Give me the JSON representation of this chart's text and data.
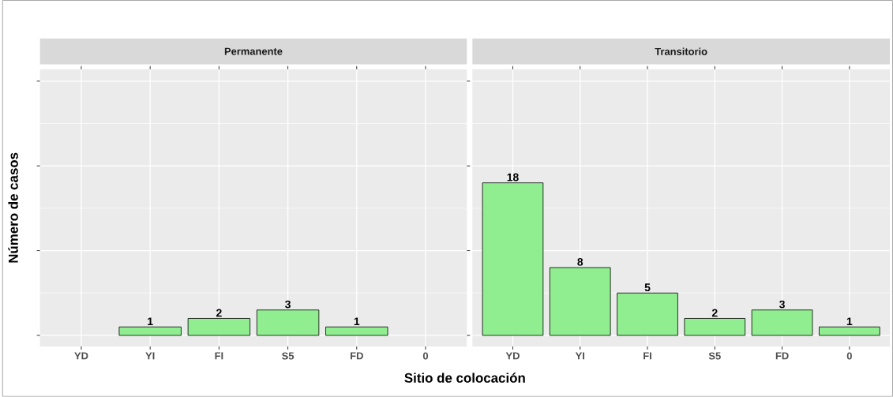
{
  "chart_data": [
    {
      "type": "bar",
      "title": "Permanente",
      "xlabel": "Sitio de colocación",
      "ylabel": "Número de casos",
      "categories": [
        "YD",
        "YI",
        "FI",
        "S5",
        "FD",
        "0"
      ],
      "values": [
        null,
        1,
        2,
        3,
        1,
        null
      ],
      "color": "#90ee90",
      "ylim": [
        -1.3,
        31.4
      ],
      "yticks": [
        {
          "value": 0,
          "label": null
        },
        {
          "value": 10,
          "label": null
        },
        {
          "value": 20,
          "label": null
        },
        {
          "value": 30,
          "label": null
        }
      ],
      "tick_labels": "x",
      "grid": true,
      "data_labels": true
    },
    {
      "type": "bar",
      "title": "Transitorio",
      "categories": [
        "YD",
        "YI",
        "FI",
        "S5",
        "FD",
        "0"
      ],
      "values": [
        18,
        8,
        5,
        2,
        3,
        1
      ],
      "color": "#90ee90",
      "ylim": [
        -1.3,
        31.4
      ],
      "yticks": [
        {
          "value": 0,
          "label": null
        },
        {
          "value": 10,
          "label": null
        },
        {
          "value": 20,
          "label": null
        },
        {
          "value": 30,
          "label": null
        }
      ],
      "tick_labels": "x",
      "grid": true,
      "data_labels": true
    }
  ]
}
